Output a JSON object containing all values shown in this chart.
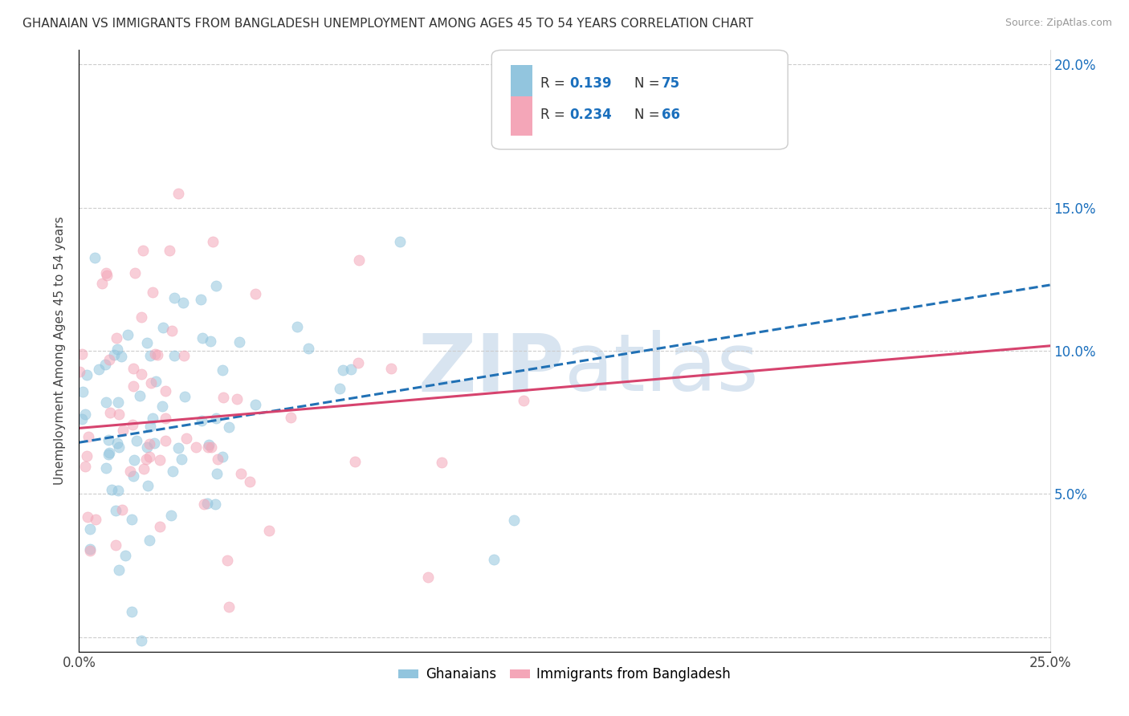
{
  "title": "GHANAIAN VS IMMIGRANTS FROM BANGLADESH UNEMPLOYMENT AMONG AGES 45 TO 54 YEARS CORRELATION CHART",
  "source": "Source: ZipAtlas.com",
  "ylabel": "Unemployment Among Ages 45 to 54 years",
  "xlim": [
    0.0,
    0.25
  ],
  "ylim": [
    -0.005,
    0.205
  ],
  "xtick_positions": [
    0.0,
    0.05,
    0.1,
    0.15,
    0.2,
    0.25
  ],
  "xticklabels": [
    "0.0%",
    "",
    "",
    "",
    "",
    "25.0%"
  ],
  "ytick_positions": [
    0.0,
    0.05,
    0.1,
    0.15,
    0.2
  ],
  "yticklabels_right": [
    "",
    "5.0%",
    "10.0%",
    "15.0%",
    "20.0%"
  ],
  "legend_labels": [
    "Ghanaians",
    "Immigrants from Bangladesh"
  ],
  "legend_R": [
    0.139,
    0.234
  ],
  "legend_N": [
    75,
    66
  ],
  "blue_color": "#92c5de",
  "pink_color": "#f4a6b8",
  "blue_line_color": "#2171b5",
  "pink_line_color": "#d6436e",
  "watermark_color": "#d8e4f0",
  "title_fontsize": 11,
  "axis_label_fontsize": 11,
  "tick_fontsize": 12,
  "blue_line_intercept": 0.068,
  "blue_line_slope": 0.22,
  "pink_line_intercept": 0.073,
  "pink_line_slope": 0.115
}
